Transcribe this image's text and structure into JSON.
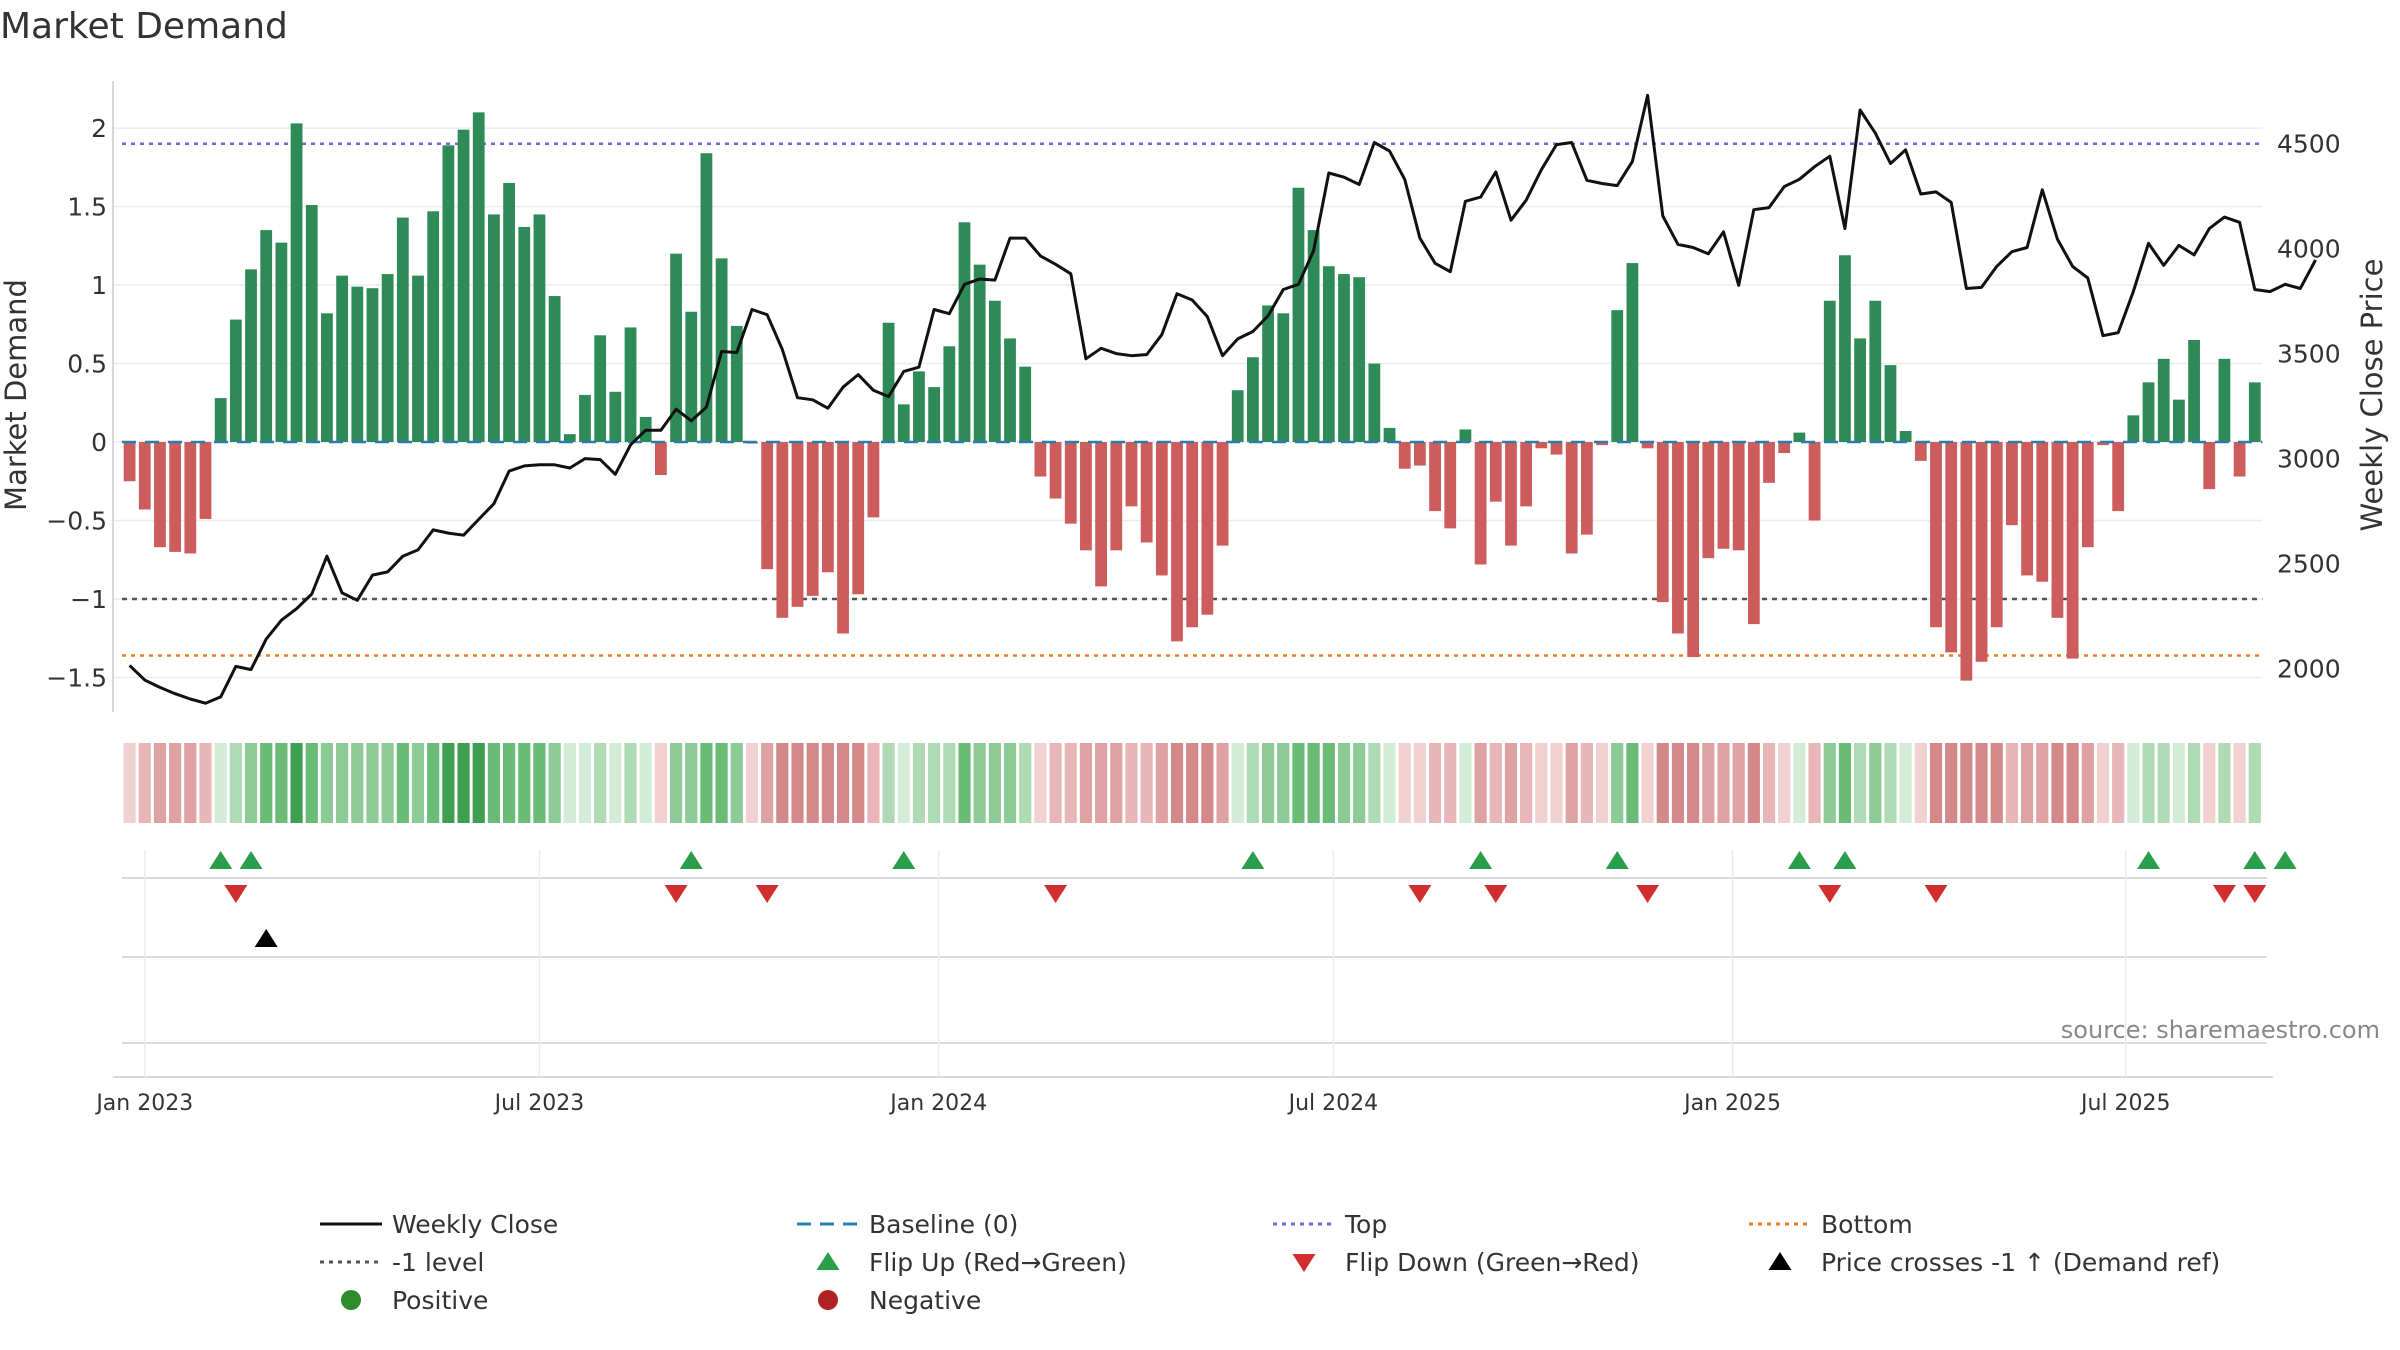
{
  "chart_data": {
    "type": "bar",
    "title": "Market Demand",
    "ylabel_left": "Market Demand",
    "ylabel_right": "Weekly Close Price",
    "ylim_left": [
      -1.72,
      2.3
    ],
    "ylim_right": [
      1793,
      4798
    ],
    "yticks_left": [
      -1.5,
      -1,
      -0.5,
      0,
      0.5,
      1,
      1.5,
      2
    ],
    "yticks_left_labels": [
      "−1.5",
      "−1",
      "−0.5",
      "0",
      "0.5",
      "1",
      "1.5",
      "2"
    ],
    "yticks_right": [
      2000,
      2500,
      3000,
      3500,
      4000,
      4500
    ],
    "x_ticks": [
      {
        "label": "Jan 2023",
        "week": 1.5
      },
      {
        "label": "Jul 2023",
        "week": 27.5
      },
      {
        "label": "Jan 2024",
        "week": 53.8
      },
      {
        "label": "Jul 2024",
        "week": 79.8
      },
      {
        "label": "Jan 2025",
        "week": 106.1
      },
      {
        "label": "Jul 2025",
        "week": 132
      }
    ],
    "reference_lines": {
      "baseline": 0,
      "top": 1.9,
      "minus_one": -1,
      "bottom": -1.36
    },
    "demand": [
      -0.25,
      -0.43,
      -0.67,
      -0.7,
      -0.71,
      -0.49,
      0.28,
      0.78,
      1.1,
      1.35,
      1.27,
      2.03,
      1.51,
      0.82,
      1.06,
      0.99,
      0.98,
      1.07,
      1.43,
      1.06,
      1.47,
      1.89,
      1.99,
      2.1,
      1.45,
      1.65,
      1.37,
      1.45,
      0.93,
      0.05,
      0.3,
      0.68,
      0.32,
      0.73,
      0.16,
      -0.21,
      1.2,
      0.83,
      1.84,
      1.17,
      0.74,
      -0.01,
      -0.81,
      -1.12,
      -1.05,
      -0.98,
      -0.83,
      -1.22,
      -0.97,
      -0.48,
      0.76,
      0.24,
      0.45,
      0.35,
      0.61,
      1.4,
      1.13,
      0.9,
      0.66,
      0.48,
      -0.22,
      -0.36,
      -0.52,
      -0.69,
      -0.92,
      -0.69,
      -0.41,
      -0.64,
      -0.85,
      -1.27,
      -1.18,
      -1.1,
      -0.66,
      0.33,
      0.54,
      0.87,
      0.82,
      1.62,
      1.35,
      1.12,
      1.07,
      1.05,
      0.5,
      0.09,
      -0.17,
      -0.15,
      -0.44,
      -0.55,
      0.08,
      -0.78,
      -0.38,
      -0.66,
      -0.41,
      -0.04,
      -0.08,
      -0.71,
      -0.59,
      -0.02,
      0.84,
      1.14,
      -0.04,
      -1.02,
      -1.22,
      -1.37,
      -0.74,
      -0.68,
      -0.69,
      -1.16,
      -0.26,
      -0.07,
      0.06,
      -0.5,
      0.9,
      1.19,
      0.66,
      0.9,
      0.49,
      0.07,
      -0.12,
      -1.18,
      -1.34,
      -1.52,
      -1.4,
      -1.18,
      -0.53,
      -0.85,
      -0.89,
      -1.12,
      -1.38,
      -0.67,
      -0.02,
      -0.44,
      0.17,
      0.38,
      0.53,
      0.27,
      0.65,
      -0.3,
      0.53,
      -0.22,
      0.38
    ],
    "weekly_close": [
      2015,
      1945,
      1910,
      1880,
      1855,
      1835,
      1865,
      2010,
      1995,
      2140,
      2230,
      2285,
      2355,
      2535,
      2360,
      2325,
      2445,
      2460,
      2535,
      2565,
      2660,
      2645,
      2635,
      2710,
      2785,
      2940,
      2965,
      2970,
      2970,
      2955,
      3000,
      2995,
      2925,
      3065,
      3135,
      3135,
      3235,
      3180,
      3245,
      3510,
      3505,
      3710,
      3685,
      3520,
      3290,
      3280,
      3240,
      3340,
      3400,
      3325,
      3295,
      3415,
      3435,
      3710,
      3690,
      3830,
      3855,
      3850,
      4050,
      4050,
      3965,
      3925,
      3880,
      3475,
      3525,
      3500,
      3490,
      3495,
      3590,
      3785,
      3755,
      3675,
      3490,
      3570,
      3605,
      3680,
      3805,
      3830,
      3990,
      4360,
      4340,
      4305,
      4505,
      4465,
      4330,
      4050,
      3930,
      3890,
      4225,
      4245,
      4365,
      4135,
      4230,
      4375,
      4495,
      4505,
      4325,
      4310,
      4300,
      4415,
      4730,
      4155,
      4020,
      4005,
      3975,
      4080,
      3825,
      4185,
      4195,
      4295,
      4330,
      4390,
      4440,
      4095,
      4660,
      4550,
      4405,
      4470,
      4260,
      4270,
      4220,
      3810,
      3815,
      3915,
      3985,
      4005,
      4280,
      4045,
      3915,
      3860,
      3585,
      3600,
      3795,
      4025,
      3920,
      4015,
      3970,
      4095,
      4150,
      4125,
      3805,
      3795,
      3830,
      3810,
      3945
    ],
    "strip_intensity": [
      1,
      2,
      3,
      3,
      3,
      2,
      1,
      2,
      3,
      4,
      4,
      5,
      4,
      3,
      3,
      3,
      3,
      3,
      4,
      3,
      4,
      5,
      5,
      5,
      4,
      4,
      4,
      4,
      3,
      1,
      1,
      2,
      1,
      2,
      1,
      1,
      3,
      3,
      4,
      4,
      3,
      1,
      3,
      4,
      4,
      4,
      4,
      4,
      4,
      2,
      2,
      1,
      2,
      2,
      2,
      4,
      3,
      3,
      3,
      2,
      1,
      2,
      2,
      3,
      3,
      3,
      2,
      2,
      3,
      4,
      4,
      4,
      3,
      1,
      2,
      3,
      3,
      4,
      4,
      4,
      3,
      3,
      2,
      1,
      1,
      1,
      2,
      2,
      1,
      3,
      2,
      3,
      2,
      1,
      1,
      3,
      2,
      1,
      3,
      4,
      1,
      4,
      4,
      4,
      3,
      3,
      3,
      4,
      2,
      1,
      1,
      2,
      3,
      4,
      2,
      3,
      2,
      1,
      1,
      4,
      4,
      4,
      4,
      4,
      2,
      3,
      3,
      4,
      4,
      3,
      1,
      2,
      1,
      2,
      2,
      1,
      2,
      1,
      2,
      1,
      2
    ],
    "flip_up_weeks": [
      6,
      8,
      37,
      51,
      74,
      89,
      98,
      110,
      113,
      133,
      140,
      142
    ],
    "flip_down_weeks": [
      7,
      36,
      42,
      61,
      85,
      90,
      100,
      112,
      119,
      138,
      140
    ],
    "price_cross_weeks": [
      9
    ],
    "legend": [
      {
        "label": "Weekly Close",
        "symbol": "line",
        "color": "#111111"
      },
      {
        "label": "Baseline (0)",
        "symbol": "dash",
        "color": "#2a7cad"
      },
      {
        "label": "Top",
        "symbol": "dot",
        "color": "#6a6ad8"
      },
      {
        "label": "Bottom",
        "symbol": "dot",
        "color": "#e67e22"
      },
      {
        "label": "-1 level",
        "symbol": "dot",
        "color": "#555555"
      },
      {
        "label": "Flip Up (Red→Green)",
        "symbol": "triangle-up",
        "color": "#2a9e4a"
      },
      {
        "label": "Flip Down (Green→Red)",
        "symbol": "triangle-down",
        "color": "#d12f2f"
      },
      {
        "label": "Price crosses -1 ↑ (Demand ref)",
        "symbol": "triangle-up",
        "color": "#000000"
      },
      {
        "label": "Positive",
        "symbol": "circle",
        "color": "#2e8b2e"
      },
      {
        "label": "Negative",
        "symbol": "circle",
        "color": "#b22222"
      }
    ],
    "source": "source: sharemaestro.com",
    "colors": {
      "positive_bar": "#2e8b57",
      "negative_bar": "#cd5c5c",
      "price_line": "#111111"
    }
  }
}
